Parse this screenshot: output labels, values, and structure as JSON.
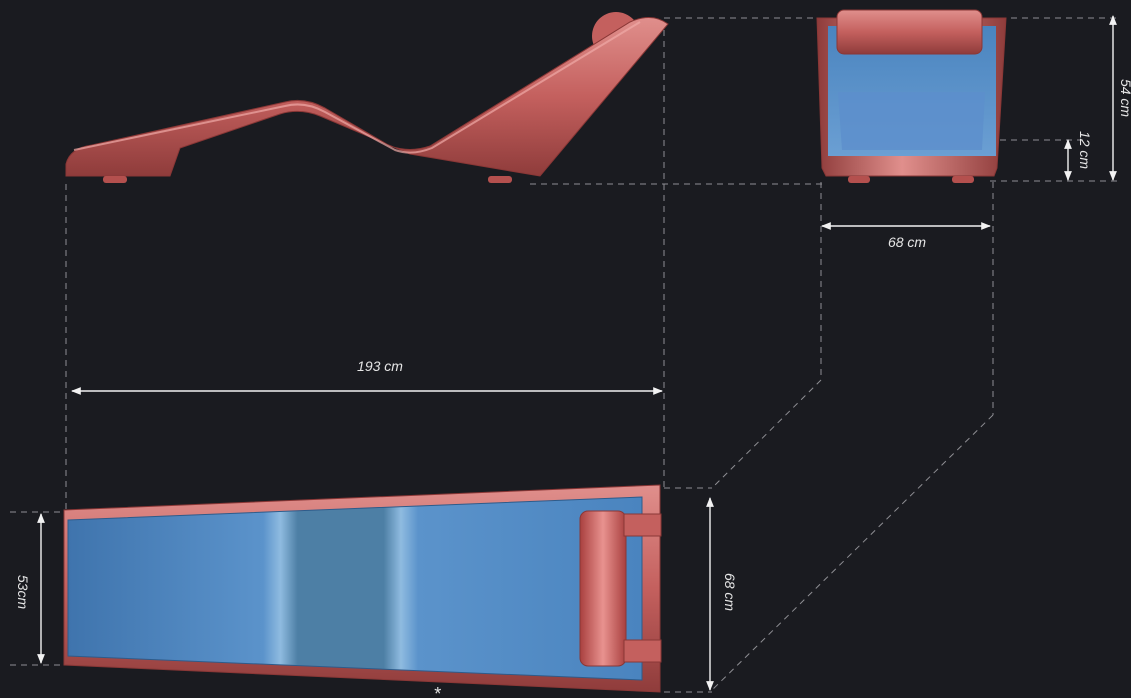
{
  "dimensions": {
    "length": "193 cm",
    "front_width": "68 cm",
    "total_height": "54 cm",
    "base_height": "12 cm",
    "top_width": "68 cm",
    "head_width": "53cm"
  },
  "footnote_mark": "*",
  "colors": {
    "background": "#1a1b20",
    "frame": "#c4605e",
    "upholstery": "#4f88c2",
    "guide_lines": "#8e8e93",
    "dimension_lines": "#f2f2f2"
  }
}
